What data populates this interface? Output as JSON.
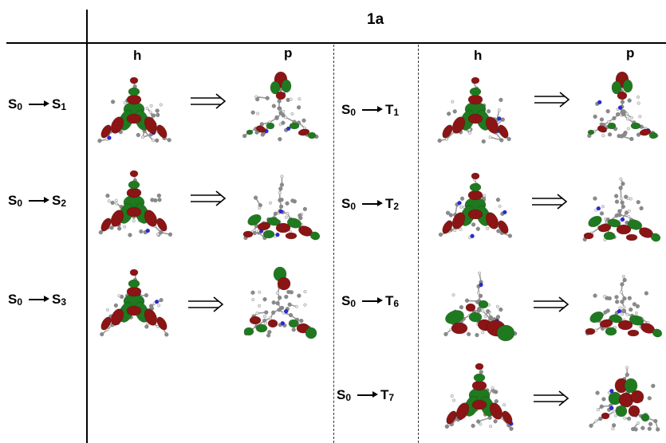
{
  "header": {
    "title": "1a"
  },
  "columns": {
    "left_h": "h",
    "left_p": "p",
    "right_h": "h",
    "right_p": "p"
  },
  "singlets": [
    {
      "from": "S",
      "from_sub": "0",
      "to": "S",
      "to_sub": "1"
    },
    {
      "from": "S",
      "from_sub": "0",
      "to": "S",
      "to_sub": "2"
    },
    {
      "from": "S",
      "from_sub": "0",
      "to": "S",
      "to_sub": "3"
    }
  ],
  "triplets": [
    {
      "from": "S",
      "from_sub": "0",
      "to": "T",
      "to_sub": "1"
    },
    {
      "from": "S",
      "from_sub": "0",
      "to": "T",
      "to_sub": "2"
    },
    {
      "from": "S",
      "from_sub": "0",
      "to": "T",
      "to_sub": "6"
    },
    {
      "from": "S",
      "from_sub": "0",
      "to": "T",
      "to_sub": "7"
    }
  ],
  "colors": {
    "lobe_red": "#8b1414",
    "lobe_green": "#1f7a1f",
    "bond_gray": "#9a9a9a",
    "nitrogen": "#2a2ad0",
    "hydrogen": "#e6e6e6"
  }
}
